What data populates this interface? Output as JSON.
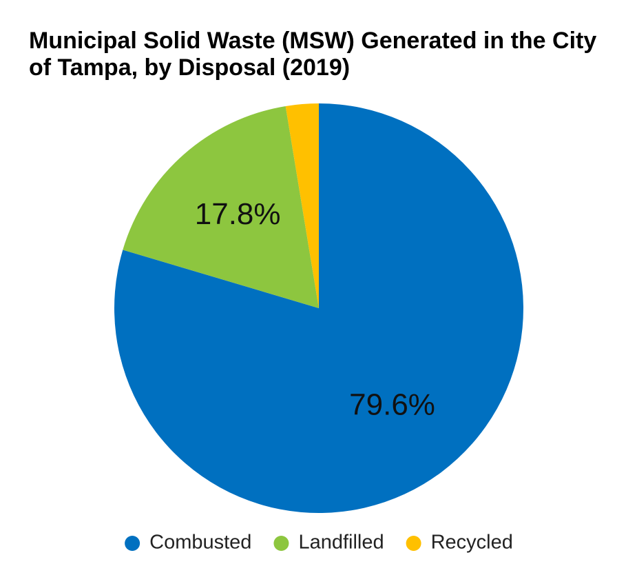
{
  "chart_data": {
    "type": "pie",
    "title": "Municipal Solid Waste (MSW) Generated in the City of Tampa, by Disposal (2019)",
    "categories": [
      "Combusted",
      "Landfilled",
      "Recycled"
    ],
    "values": [
      79.6,
      17.8,
      2.6
    ],
    "data_labels": [
      "79.6%",
      "17.8%",
      ""
    ],
    "colors": [
      "#0070C0",
      "#8DC63F",
      "#FFC000"
    ],
    "start_angle": "12 o'clock",
    "direction": "clockwise",
    "legend_position": "bottom"
  }
}
